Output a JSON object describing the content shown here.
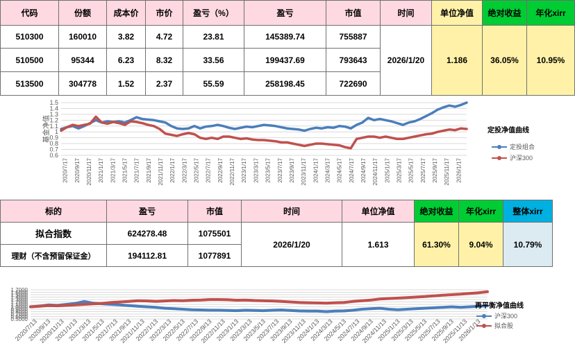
{
  "holdings_table": {
    "headers": {
      "code": "代码",
      "shares": "份额",
      "cost": "成本价",
      "price": "市价",
      "pnl_pct": "盈亏（%）",
      "pnl": "盈亏",
      "value": "市值",
      "date": "时间",
      "nav": "单位净值",
      "abs_return": "绝对收益",
      "annual": "年化xirr"
    },
    "rows": [
      {
        "code": "510300",
        "shares": "160010",
        "cost": "3.82",
        "price": "4.72",
        "pnl_pct": "23.81",
        "pnl": "145389.74",
        "value": "755887"
      },
      {
        "code": "510500",
        "shares": "95344",
        "cost": "6.23",
        "price": "8.32",
        "pnl_pct": "33.56",
        "pnl": "199437.69",
        "value": "793643"
      },
      {
        "code": "513500",
        "shares": "304778",
        "cost": "1.52",
        "price": "2.37",
        "pnl_pct": "55.59",
        "pnl": "258198.45",
        "value": "722690"
      }
    ],
    "summary": {
      "date": "2026/1/20",
      "nav": "1.186",
      "abs_return": "36.05%",
      "annual": "10.95%"
    }
  },
  "portfolio_table": {
    "headers": {
      "name": "标的",
      "pnl": "盈亏",
      "value": "市值",
      "date": "时间",
      "nav": "单位净值",
      "abs_return": "绝对收益",
      "annual": "年化xirr",
      "overall": "整体xirr"
    },
    "rows": [
      {
        "name": "拟合指数",
        "pnl": "624278.48",
        "value": "1075501"
      },
      {
        "name": "理财（不含预留保证金）",
        "pnl": "194112.81",
        "value": "1077891"
      }
    ],
    "summary": {
      "date": "2026/1/20",
      "nav": "1.613",
      "abs_return": "61.30%",
      "annual": "9.04%",
      "overall": "10.79%"
    }
  },
  "colors": {
    "blue": "#4a7ebb",
    "red": "#c0504d",
    "grid": "#d9d9d9",
    "axis_text": "#595959"
  },
  "chart_data": [
    {
      "type": "line",
      "title": "定投净值曲线",
      "xlabel": "",
      "ylabel": "基金净值",
      "ylim": [
        0.6,
        1.5
      ],
      "yticks": [
        0.6,
        0.7,
        0.8,
        0.9,
        1,
        1.1,
        1.2,
        1.3,
        1.4,
        1.5
      ],
      "xticks": [
        "2020/7/17",
        "2020/9/17",
        "2020/11/17",
        "2021/1/17",
        "2021/3/17",
        "2021/5/17",
        "2021/7/17",
        "2021/9/17",
        "2021/11/17",
        "2022/1/17",
        "2022/3/17",
        "2022/5/17",
        "2022/7/17",
        "2022/9/17",
        "2022/11/17",
        "2023/1/17",
        "2023/3/17",
        "2023/5/17",
        "2023/7/17",
        "2023/9/17",
        "2023/11/17",
        "2024/1/17",
        "2024/3/17",
        "2024/5/17",
        "2024/7/17",
        "2024/9/17",
        "2024/11/17",
        "2025/1/17",
        "2025/3/17",
        "2025/5/17",
        "2025/7/17",
        "2025/9/17",
        "2025/11/17",
        "2026/1/17"
      ],
      "legend_position": "right",
      "grid": true,
      "series": [
        {
          "name": "定投组合",
          "color": "#4a7ebb",
          "values": [
            1.05,
            1.08,
            1.1,
            1.06,
            1.1,
            1.15,
            1.2,
            1.16,
            1.18,
            1.17,
            1.18,
            1.16,
            1.2,
            1.25,
            1.22,
            1.21,
            1.2,
            1.18,
            1.16,
            1.1,
            1.06,
            1.05,
            1.06,
            1.1,
            1.06,
            1.09,
            1.1,
            1.12,
            1.1,
            1.07,
            1.05,
            1.07,
            1.09,
            1.08,
            1.1,
            1.12,
            1.11,
            1.1,
            1.08,
            1.06,
            1.05,
            1.04,
            1.02,
            1.05,
            1.07,
            1.06,
            1.08,
            1.07,
            1.1,
            1.09,
            1.06,
            1.12,
            1.16,
            1.24,
            1.2,
            1.22,
            1.2,
            1.18,
            1.15,
            1.12,
            1.16,
            1.18,
            1.22,
            1.27,
            1.32,
            1.38,
            1.42,
            1.45,
            1.43,
            1.46,
            1.5
          ]
        },
        {
          "name": "沪深300",
          "color": "#c0504d",
          "values": [
            1.02,
            1.08,
            1.12,
            1.1,
            1.12,
            1.14,
            1.26,
            1.16,
            1.14,
            1.17,
            1.15,
            1.12,
            1.18,
            1.17,
            1.15,
            1.12,
            1.1,
            1.05,
            0.97,
            0.95,
            0.93,
            0.96,
            0.98,
            0.96,
            0.9,
            0.88,
            0.9,
            0.88,
            0.92,
            0.92,
            0.9,
            0.88,
            0.89,
            0.87,
            0.86,
            0.86,
            0.85,
            0.84,
            0.82,
            0.82,
            0.8,
            0.78,
            0.76,
            0.78,
            0.8,
            0.8,
            0.79,
            0.78,
            0.77,
            0.74,
            0.72,
            0.88,
            0.9,
            0.92,
            0.92,
            0.9,
            0.92,
            0.9,
            0.88,
            0.88,
            0.9,
            0.92,
            0.94,
            0.96,
            0.97,
            1.0,
            1.02,
            1.04,
            1.03,
            1.06,
            1.05
          ]
        }
      ]
    },
    {
      "type": "line",
      "title": "再平衡净值曲线",
      "xlabel": "",
      "ylabel": "",
      "ylim": [
        0.5,
        1.7
      ],
      "yticks": [
        0.5,
        0.6,
        0.7,
        0.8,
        0.9,
        1.0,
        1.1,
        1.2,
        1.3,
        1.4,
        1.5,
        1.6,
        1.7
      ],
      "ytick_labels": [
        "0.5000",
        "0.6000",
        "0.7000",
        "0.8000",
        "0.9000",
        "1.0000",
        "1.1000",
        "1.2000",
        "1.3000",
        "1.4000",
        "1.5000",
        "1.6000",
        "1.7000"
      ],
      "xticks": [
        "2020/7/13",
        "2020/9/13",
        "2020/11/13",
        "2021/1/13",
        "2021/3/13",
        "2021/5/13",
        "2021/7/13",
        "2021/9/13",
        "2021/11/13",
        "2022/1/13",
        "2022/3/13",
        "2022/5/13",
        "2022/7/13",
        "2022/9/13",
        "2022/11/13",
        "2023/1/13",
        "2023/3/13",
        "2023/5/13",
        "2023/7/13",
        "2023/9/13",
        "2023/11/13",
        "2024/1/13",
        "2024/3/13",
        "2024/5/13",
        "2024/7/13",
        "2024/9/13",
        "2024/11/13",
        "2025/1/13",
        "2025/3/13",
        "2025/5/13",
        "2025/7/13",
        "2025/9/13",
        "2025/11/13",
        "2026/1/13"
      ],
      "legend_position": "right",
      "grid": true,
      "series": [
        {
          "name": "沪深300",
          "color": "#4a7ebb",
          "values": [
            1.0,
            1.03,
            1.08,
            1.06,
            1.1,
            1.14,
            1.22,
            1.15,
            1.12,
            1.1,
            1.08,
            1.05,
            1.02,
            1.0,
            0.98,
            0.94,
            0.92,
            0.9,
            0.88,
            0.87,
            0.86,
            0.86,
            0.85,
            0.84,
            0.86,
            0.85,
            0.84,
            0.86,
            0.87,
            0.85,
            0.83,
            0.82,
            0.82,
            0.8,
            0.82,
            0.83,
            0.86,
            0.9,
            0.92,
            0.94,
            0.9,
            0.88,
            0.9,
            0.92,
            0.94,
            0.96,
            0.98,
            1.0,
            0.98,
            1.0,
            1.02,
            1.04
          ]
        },
        {
          "name": "拟合股",
          "color": "#c0504d",
          "values": [
            1.0,
            1.02,
            1.05,
            1.04,
            1.06,
            1.08,
            1.1,
            1.12,
            1.14,
            1.18,
            1.2,
            1.22,
            1.25,
            1.24,
            1.22,
            1.24,
            1.26,
            1.25,
            1.27,
            1.28,
            1.3,
            1.3,
            1.29,
            1.27,
            1.28,
            1.26,
            1.25,
            1.24,
            1.22,
            1.2,
            1.18,
            1.17,
            1.16,
            1.15,
            1.17,
            1.18,
            1.22,
            1.25,
            1.28,
            1.32,
            1.34,
            1.36,
            1.38,
            1.4,
            1.42,
            1.45,
            1.48,
            1.5,
            1.52,
            1.55,
            1.58,
            1.62
          ]
        }
      ]
    }
  ]
}
